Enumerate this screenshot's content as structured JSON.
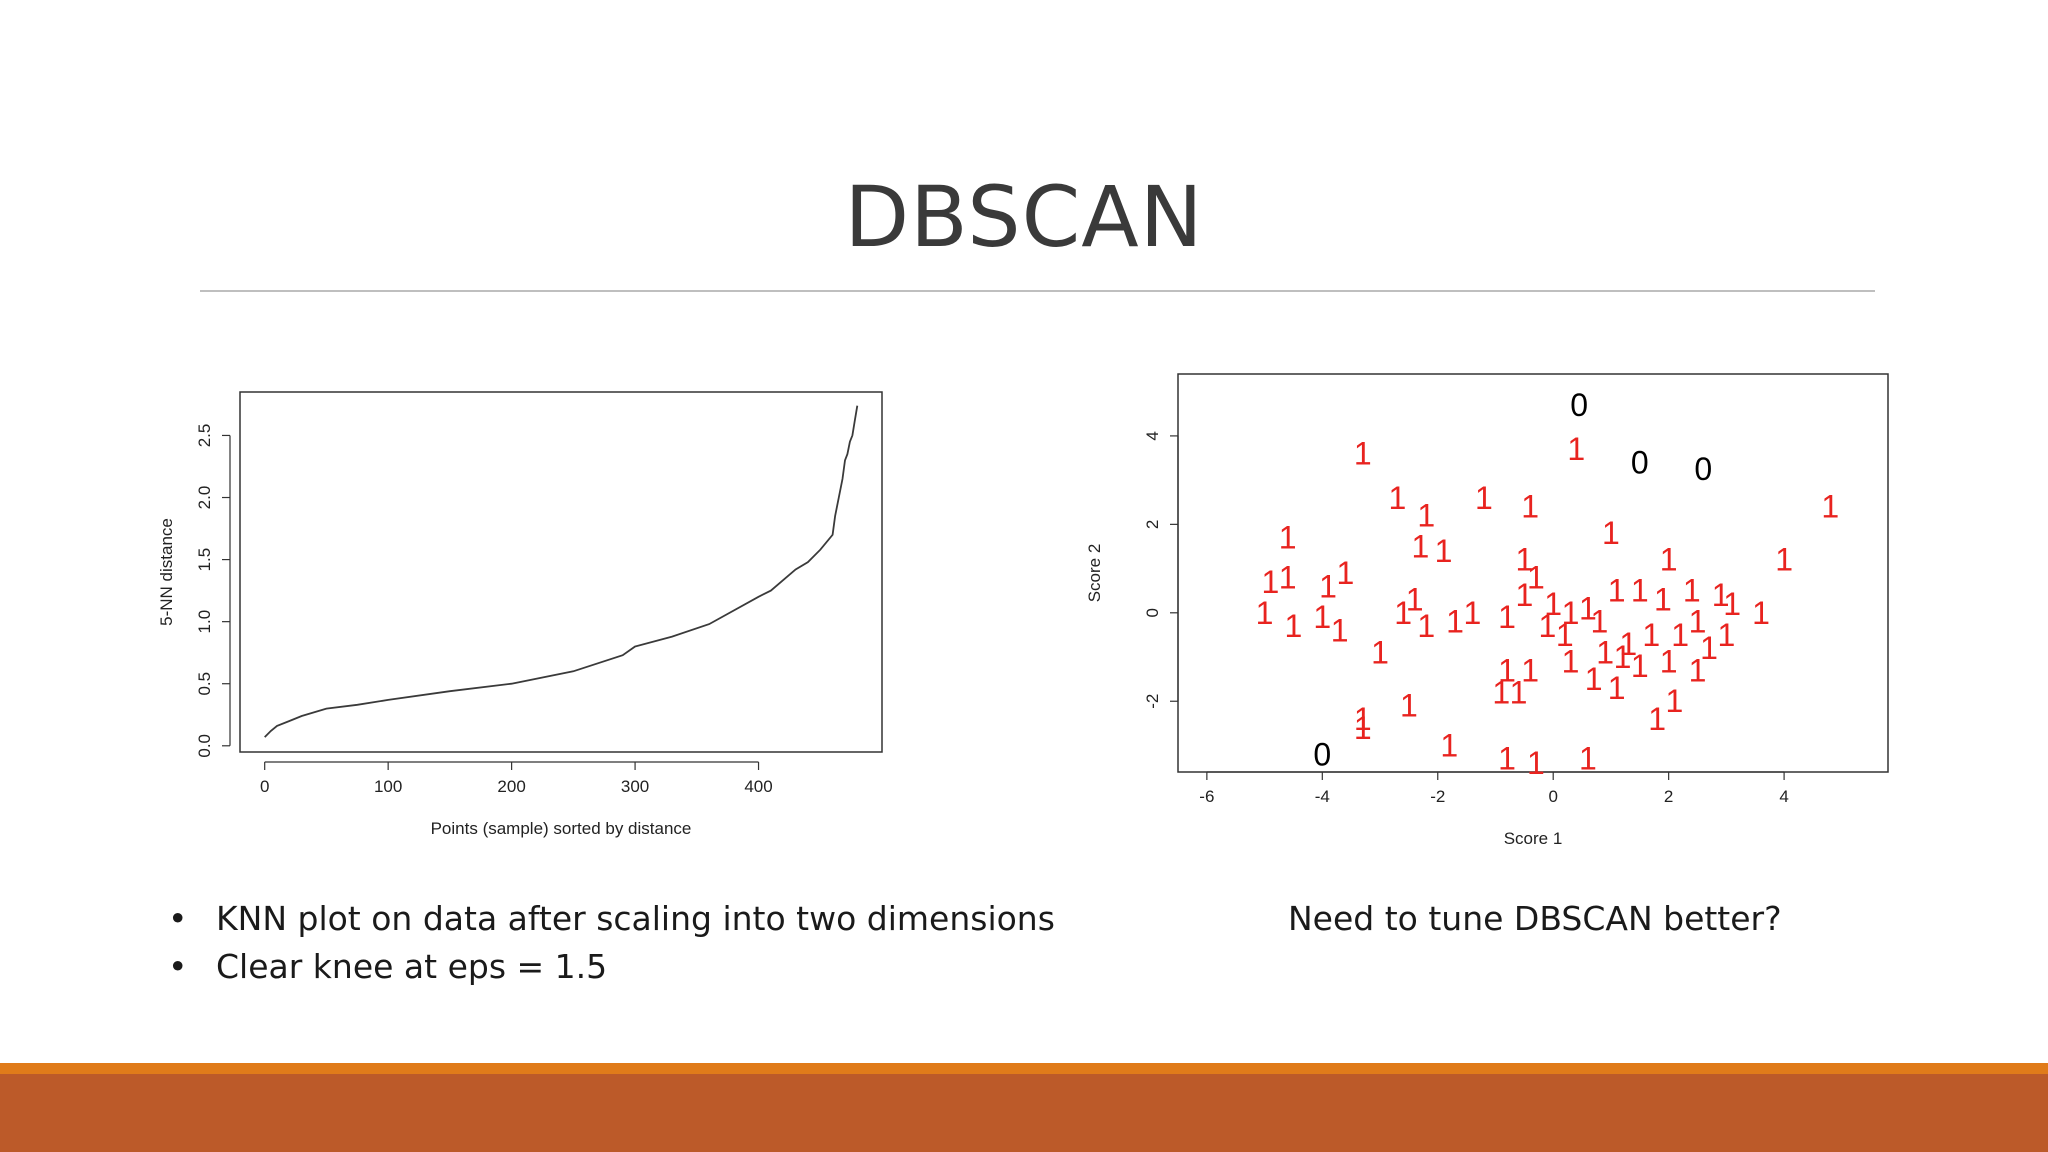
{
  "slide": {
    "title": "DBSCAN",
    "bullets": [
      "KNN plot on data after scaling into two dimensions",
      "Clear knee at eps = 1.5"
    ],
    "right_caption": "Need to tune DBSCAN better?",
    "colors": {
      "text": "#1a1a1a",
      "title": "#3a3a3a",
      "rule": "#bfbfbf",
      "footer_strip": "#e07b1a",
      "footer_bar": "#bc5a29"
    }
  },
  "chart_data": [
    {
      "type": "line",
      "xlabel": "Points (sample) sorted by distance",
      "ylabel": "5-NN distance",
      "xlim": [
        -20,
        500
      ],
      "ylim": [
        -0.05,
        2.85
      ],
      "xticks": [
        0,
        100,
        200,
        300,
        400
      ],
      "yticks": [
        0.0,
        0.5,
        1.0,
        1.5,
        2.0,
        2.5
      ],
      "line_color": "#3a3a3a",
      "x": [
        0,
        5,
        10,
        20,
        30,
        50,
        75,
        100,
        150,
        200,
        250,
        290,
        300,
        330,
        360,
        400,
        410,
        430,
        440,
        450,
        460,
        462,
        465,
        468,
        470,
        472,
        474,
        476,
        478,
        480
      ],
      "y": [
        0.07,
        0.12,
        0.16,
        0.2,
        0.24,
        0.3,
        0.33,
        0.37,
        0.44,
        0.5,
        0.6,
        0.73,
        0.8,
        0.88,
        0.98,
        1.2,
        1.25,
        1.42,
        1.48,
        1.58,
        1.7,
        1.85,
        2.0,
        2.15,
        2.3,
        2.35,
        2.45,
        2.5,
        2.62,
        2.74
      ]
    },
    {
      "type": "scatter",
      "xlabel": "Score 1",
      "ylabel": "Score 2",
      "xlim": [
        -6.5,
        5.8
      ],
      "ylim": [
        -3.6,
        5.4
      ],
      "xticks": [
        -6,
        -4,
        -2,
        0,
        2,
        4
      ],
      "yticks": [
        -2,
        0,
        2,
        4
      ],
      "clusters": [
        {
          "label": "0",
          "color": "#000000",
          "points": [
            [
              0.45,
              4.7
            ],
            [
              1.5,
              3.4
            ],
            [
              2.6,
              3.25
            ],
            [
              -4.0,
              -3.2
            ]
          ]
        },
        {
          "label": "1",
          "color": "#e8231f",
          "points": [
            [
              -3.3,
              3.6
            ],
            [
              0.4,
              3.7
            ],
            [
              -2.7,
              2.6
            ],
            [
              -2.2,
              2.2
            ],
            [
              -1.2,
              2.6
            ],
            [
              -0.4,
              2.4
            ],
            [
              4.8,
              2.4
            ],
            [
              -4.6,
              1.7
            ],
            [
              -2.3,
              1.5
            ],
            [
              -1.9,
              1.4
            ],
            [
              1.0,
              1.8
            ],
            [
              2.0,
              1.2
            ],
            [
              4.0,
              1.2
            ],
            [
              -4.9,
              0.7
            ],
            [
              -4.6,
              0.8
            ],
            [
              -3.6,
              0.9
            ],
            [
              -3.9,
              0.6
            ],
            [
              -2.4,
              0.3
            ],
            [
              -2.6,
              0.0
            ],
            [
              -2.2,
              -0.3
            ],
            [
              -1.7,
              -0.2
            ],
            [
              -1.4,
              0.0
            ],
            [
              -0.5,
              1.2
            ],
            [
              -0.3,
              0.8
            ],
            [
              -0.5,
              0.4
            ],
            [
              0.0,
              0.2
            ],
            [
              0.3,
              0.0
            ],
            [
              0.6,
              0.1
            ],
            [
              0.8,
              -0.2
            ],
            [
              1.1,
              0.5
            ],
            [
              1.5,
              0.5
            ],
            [
              1.9,
              0.3
            ],
            [
              2.4,
              0.5
            ],
            [
              2.9,
              0.4
            ],
            [
              3.1,
              0.2
            ],
            [
              3.6,
              0.0
            ],
            [
              -5.0,
              0.0
            ],
            [
              -4.5,
              -0.3
            ],
            [
              -4.0,
              -0.1
            ],
            [
              -3.7,
              -0.4
            ],
            [
              -3.0,
              -0.9
            ],
            [
              -0.8,
              -0.1
            ],
            [
              -0.1,
              -0.3
            ],
            [
              0.2,
              -0.5
            ],
            [
              0.9,
              -0.9
            ],
            [
              1.3,
              -0.7
            ],
            [
              1.7,
              -0.5
            ],
            [
              2.2,
              -0.5
            ],
            [
              2.5,
              -0.2
            ],
            [
              2.7,
              -0.8
            ],
            [
              3.0,
              -0.5
            ],
            [
              -0.8,
              -1.3
            ],
            [
              -0.4,
              -1.3
            ],
            [
              0.3,
              -1.1
            ],
            [
              0.7,
              -1.5
            ],
            [
              1.1,
              -1.7
            ],
            [
              1.5,
              -1.2
            ],
            [
              2.0,
              -1.1
            ],
            [
              2.5,
              -1.3
            ],
            [
              -0.9,
              -1.8
            ],
            [
              -0.6,
              -1.8
            ],
            [
              1.2,
              -1.0
            ],
            [
              -3.3,
              -2.4
            ],
            [
              -3.3,
              -2.6
            ],
            [
              -2.5,
              -2.1
            ],
            [
              -1.8,
              -3.0
            ],
            [
              1.8,
              -2.4
            ],
            [
              2.1,
              -2.0
            ],
            [
              -0.8,
              -3.3
            ],
            [
              -0.3,
              -3.4
            ],
            [
              0.6,
              -3.3
            ]
          ]
        }
      ]
    }
  ]
}
